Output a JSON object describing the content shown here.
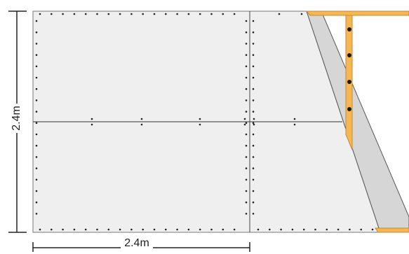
{
  "dimensions": {
    "height_label": "2.4m",
    "width_label": "2.4m"
  },
  "colors": {
    "background": "#ffffff",
    "panel_fill": "#efefef",
    "panel_edge": "#666666",
    "seam_line": "#333333",
    "screw_dot": "#222222",
    "cut_offcut": "#d6d6d6",
    "timber_fill": "#f5b654",
    "timber_edge": "#c9892e",
    "bolt": "#1a1a1a",
    "dimension_line": "#222222"
  },
  "panels": {
    "description_count": 4,
    "screw_pattern": "perimeter-and-seam"
  },
  "icons": {
    "bolt": "bolt-dot",
    "screw": "screw-dot"
  }
}
